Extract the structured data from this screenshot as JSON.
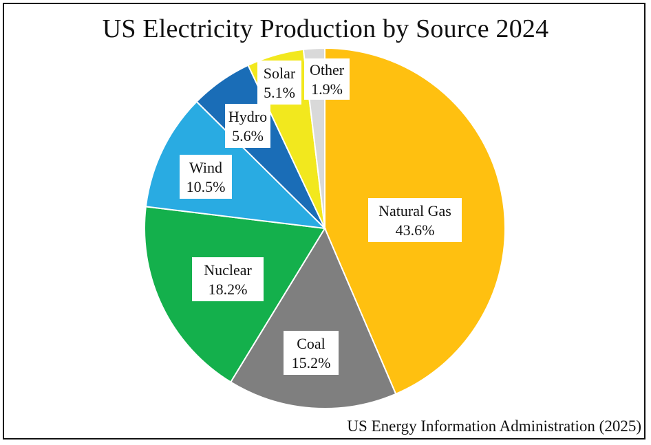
{
  "chart_data": {
    "type": "pie",
    "title": "US Electricity Production by Source 2024",
    "source": "US Energy Information Administration (2025)",
    "slices": [
      {
        "label": "Natural Gas",
        "value": 43.6,
        "text": "43.6%",
        "color": "#FFC010"
      },
      {
        "label": "Coal",
        "value": 15.2,
        "text": "15.2%",
        "color": "#7F7F7F"
      },
      {
        "label": "Nuclear",
        "value": 18.2,
        "text": "18.2%",
        "color": "#14B04C"
      },
      {
        "label": "Wind",
        "value": 10.5,
        "text": "10.5%",
        "color": "#29ABE2"
      },
      {
        "label": "Hydro",
        "value": 5.6,
        "text": "5.6%",
        "color": "#1A6DB7"
      },
      {
        "label": "Solar",
        "value": 5.1,
        "text": "5.1%",
        "color": "#F2E81E"
      },
      {
        "label": "Other",
        "value": 1.9,
        "text": "1.9%",
        "color": "#D9D9D9"
      }
    ]
  }
}
